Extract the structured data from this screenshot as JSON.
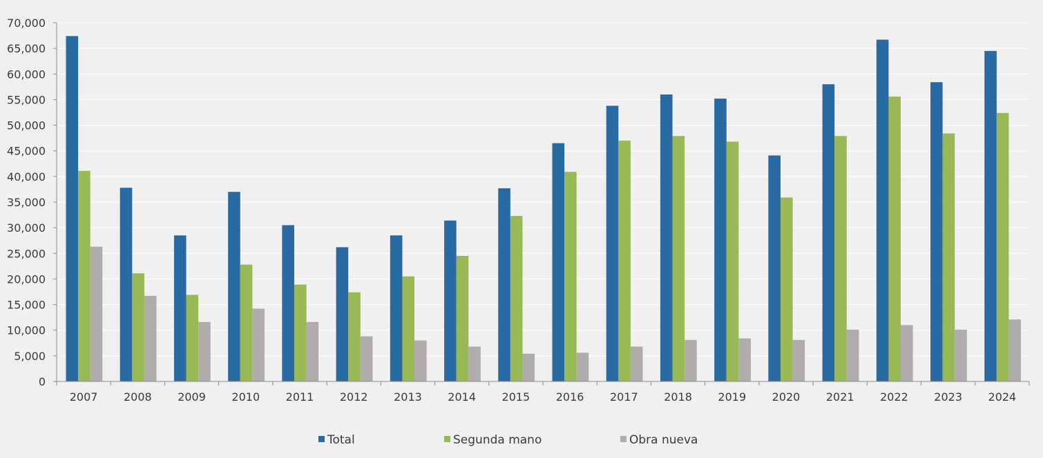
{
  "chart_data": {
    "type": "bar",
    "title": "",
    "xlabel": "",
    "ylabel": "",
    "ylim": [
      0,
      70000
    ],
    "yticks": [
      0,
      5000,
      10000,
      15000,
      20000,
      25000,
      30000,
      35000,
      40000,
      45000,
      50000,
      55000,
      60000,
      65000,
      70000
    ],
    "ytick_labels": [
      "0",
      "5,000",
      "10,000",
      "15,000",
      "20,000",
      "25,000",
      "30,000",
      "35,000",
      "40,000",
      "45,000",
      "50,000",
      "55,000",
      "60,000",
      "65,000",
      "70,000"
    ],
    "grid": true,
    "legend_position": "bottom",
    "categories": [
      "2007",
      "2008",
      "2009",
      "2010",
      "2011",
      "2012",
      "2013",
      "2014",
      "2015",
      "2016",
      "2017",
      "2018",
      "2019",
      "2020",
      "2021",
      "2022",
      "2023",
      "2024"
    ],
    "series": [
      {
        "name": "Total",
        "color": "#2a6aa3",
        "values": [
          67400,
          37800,
          28500,
          37000,
          30500,
          26200,
          28500,
          31400,
          37700,
          46500,
          53800,
          56000,
          55200,
          44100,
          58000,
          66700,
          58400,
          64500
        ]
      },
      {
        "name": "Segunda mano",
        "color": "#98b956",
        "values": [
          41100,
          21100,
          16900,
          22800,
          18900,
          17400,
          20500,
          24500,
          32300,
          40900,
          47000,
          47900,
          46800,
          35900,
          47900,
          55600,
          48400,
          52400
        ]
      },
      {
        "name": "Obra nueva",
        "color": "#b0acab",
        "values": [
          26300,
          16700,
          11600,
          14200,
          11600,
          8800,
          8000,
          6800,
          5400,
          5600,
          6800,
          8100,
          8400,
          8100,
          10100,
          11000,
          10100,
          12100
        ]
      }
    ]
  }
}
